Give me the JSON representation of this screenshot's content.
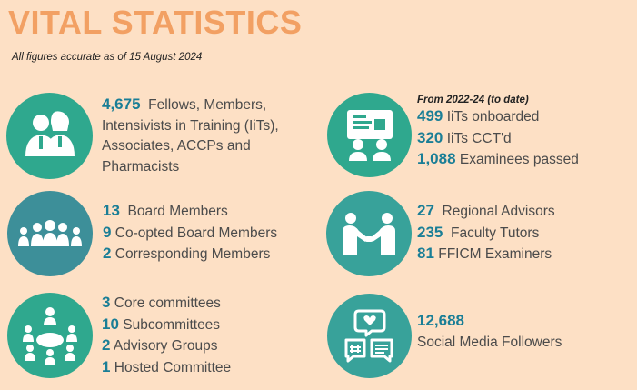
{
  "header": {
    "title": "VITAL STATISTICS",
    "subtitle": "All figures accurate as of 15 August 2024"
  },
  "colors": {
    "background": "#fde0c5",
    "title": "#f2a063",
    "number": "#1a7e96",
    "teal_green": "#2fa88e",
    "teal_blue": "#3d9aa3",
    "teal_mid": "#38a29a"
  },
  "blocks": {
    "members": {
      "icon": "people-pair-icon",
      "number": "4,675",
      "text1": "Fellows, Members,",
      "text2": "Intensivists in Training (IiTs),",
      "text3": "Associates, ACCPs and",
      "text4": "Pharmacists"
    },
    "training": {
      "icon": "presentation-icon",
      "label": "From 2022-24 (to date)",
      "rows": [
        {
          "number": "499",
          "text": "IiTs onboarded"
        },
        {
          "number": "320",
          "text": "IiTs CCT'd"
        },
        {
          "number": "1,088",
          "text": "Examinees passed"
        }
      ]
    },
    "board": {
      "icon": "group-row-icon",
      "rows": [
        {
          "number": "13",
          "text": "Board Members"
        },
        {
          "number": "9",
          "text": "Co-opted Board Members"
        },
        {
          "number": "2",
          "text": "Corresponding Members"
        }
      ]
    },
    "advisors": {
      "icon": "handshake-icon",
      "rows": [
        {
          "number": "27",
          "text": "Regional Advisors"
        },
        {
          "number": "235",
          "text": "Faculty Tutors"
        },
        {
          "number": "81",
          "text": "FFICM Examiners"
        }
      ]
    },
    "committees": {
      "icon": "meeting-table-icon",
      "rows": [
        {
          "number": "3",
          "text": "Core committees"
        },
        {
          "number": "10",
          "text": "Subcommittees"
        },
        {
          "number": "2",
          "text": "Advisory Groups"
        },
        {
          "number": "1",
          "text": "Hosted Committee"
        }
      ]
    },
    "social": {
      "icon": "social-media-icon",
      "number": "12,688",
      "text": "Social Media Followers"
    }
  }
}
